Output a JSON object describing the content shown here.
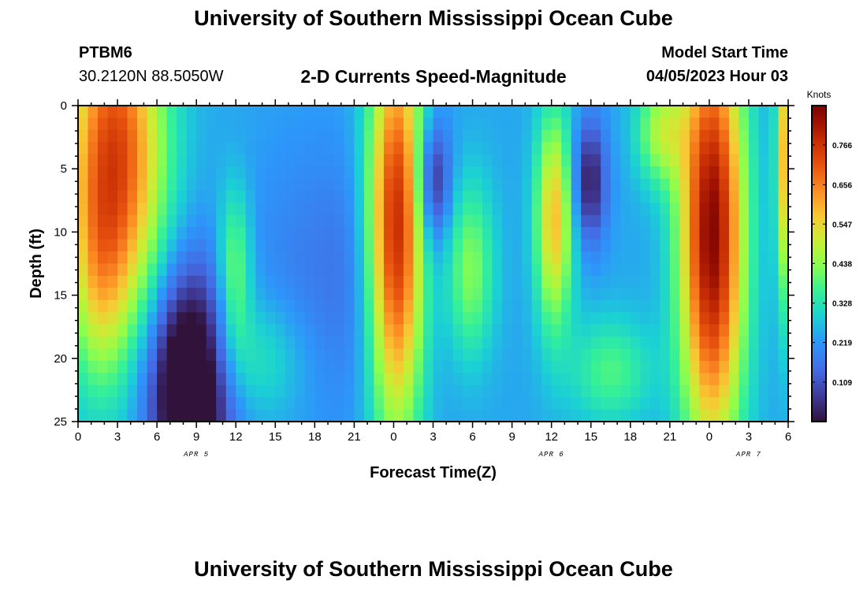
{
  "header": {
    "title": "University of Southern Mississippi Ocean Cube",
    "station_id": "PTBM6",
    "coordinates": "30.2120N  88.5050W",
    "subtitle": "2-D Currents Speed-Magnitude",
    "model_start_label": "Model Start Time",
    "model_start_value": "04/05/2023 Hour 03"
  },
  "footer": {
    "title": "University of Southern Mississippi Ocean Cube"
  },
  "chart_data": {
    "type": "heatmap",
    "title": "2-D Currents Speed-Magnitude",
    "xlabel": "Forecast Time(Z)",
    "ylabel": "Depth (ft)",
    "x_ticks": [
      "0",
      "3",
      "6",
      "9",
      "12",
      "15",
      "18",
      "21",
      "0",
      "3",
      "6",
      "9",
      "12",
      "15",
      "18",
      "21",
      "0",
      "3",
      "6"
    ],
    "x_range_hours": [
      0,
      54
    ],
    "date_labels": [
      {
        "label": "APR 5",
        "hour": 9
      },
      {
        "label": "APR 6",
        "hour": 36
      },
      {
        "label": "APR 7",
        "hour": 51
      }
    ],
    "y_ticks": [
      0,
      5,
      10,
      15,
      20,
      25
    ],
    "y_range": [
      0,
      25
    ],
    "y_inverted": true,
    "colorbar": {
      "title": "Knots",
      "tick_labels": [
        "0.109",
        "0.219",
        "0.328",
        "0.438",
        "0.547",
        "0.656",
        "0.766"
      ],
      "tick_values": [
        0.109,
        0.219,
        0.328,
        0.438,
        0.547,
        0.656,
        0.766
      ],
      "range": [
        0.0,
        0.875
      ],
      "colormap": "turbo"
    },
    "grid_resolution": {
      "columns": 72,
      "rows": 26
    },
    "features": [
      {
        "t": 2.8,
        "d": 4,
        "st": 2.6,
        "sd": 10,
        "v": 0.5
      },
      {
        "t": 1.5,
        "d": 14,
        "st": 1.4,
        "sd": 6,
        "v": 0.12
      },
      {
        "t": 8.5,
        "d": 22,
        "st": 2.2,
        "sd": 6,
        "v": -0.42
      },
      {
        "t": 11.9,
        "d": 13,
        "st": 0.9,
        "sd": 4.5,
        "v": 0.2
      },
      {
        "t": 13,
        "d": 20,
        "st": 3,
        "sd": 3.5,
        "v": 0.12
      },
      {
        "t": 24.2,
        "d": 10,
        "st": 1.5,
        "sd": 11,
        "v": 0.58
      },
      {
        "t": 27,
        "d": 6,
        "st": 0.9,
        "sd": 3.5,
        "v": -0.22
      },
      {
        "t": 29.8,
        "d": 13,
        "st": 1.3,
        "sd": 5,
        "v": 0.2
      },
      {
        "t": 36.2,
        "d": 9,
        "st": 1,
        "sd": 6,
        "v": 0.34
      },
      {
        "t": 38.9,
        "d": 6,
        "st": 0.9,
        "sd": 3.5,
        "v": -0.22
      },
      {
        "t": 40.5,
        "d": 21,
        "st": 2.2,
        "sd": 3,
        "v": 0.14
      },
      {
        "t": 44.3,
        "d": 2,
        "st": 1.3,
        "sd": 3,
        "v": 0.22
      },
      {
        "t": 48.2,
        "d": 10,
        "st": 1.7,
        "sd": 12,
        "v": 0.62
      },
      {
        "t": 53.8,
        "d": 4,
        "st": 0.5,
        "sd": 8,
        "v": 0.35
      },
      {
        "t": 20,
        "d": 14,
        "st": 5,
        "sd": 8,
        "v": -0.08
      }
    ],
    "base_value": 0.24
  }
}
